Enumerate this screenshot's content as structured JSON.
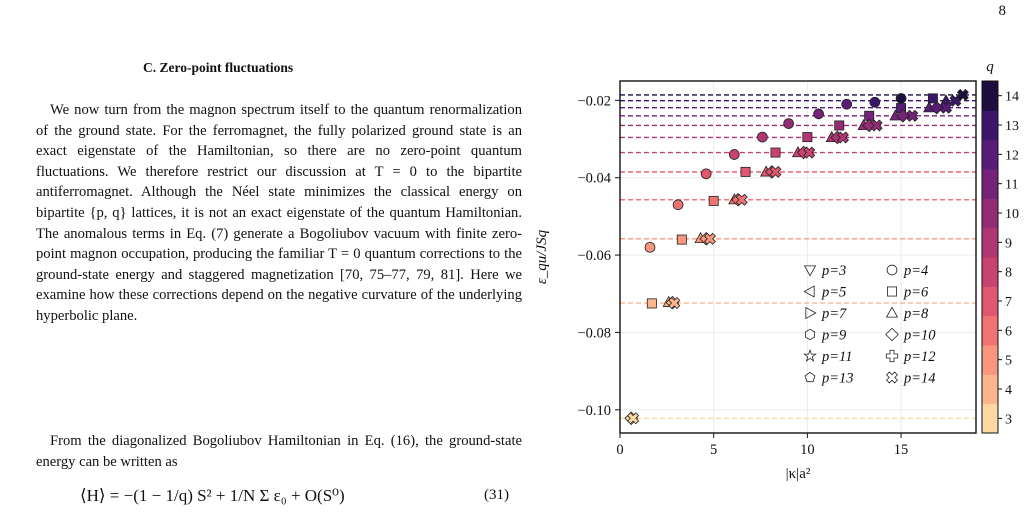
{
  "page": {
    "number": "8"
  },
  "section": {
    "heading": "C.   Zero-point fluctuations"
  },
  "paragraphs": [
    "We now turn from the magnon spectrum itself to the quantum renormalization of the ground state. For the ferromagnet, the fully polarized ground state is an exact eigenstate of the Hamiltonian, so there are no zero-point quantum fluctuations. We therefore restrict our discussion at T = 0 to the bipartite antiferromagnet. Although the Néel state minimizes the classical energy on bipartite {p, q} lattices, it is not an exact eigenstate of the quantum Hamiltonian. The anomalous terms in Eq. (7) generate a Bogoliubov vacuum with finite zero-point magnon occupation, producing the familiar T = 0 quantum corrections to the ground-state energy and staggered magnetization [70, 75–77, 79, 81]. Here we examine how these corrections depend on the negative curvature of the underlying hyperbolic plane.",
    "From the diagonalized Bogoliubov Hamiltonian in Eq. (16), the ground-state energy can be written as"
  ],
  "equation": {
    "text": "⟨H⟩ = −(1 − 1/q) S² + 1/N Σ ε₀ + O(S⁰)",
    "number": "(31)"
  },
  "chart_data": {
    "type": "scatter",
    "xlabel": "|κ|a²",
    "ylabel": "ε_qu/JSq",
    "xlim": [
      0,
      19
    ],
    "ylim": [
      -0.106,
      -0.015
    ],
    "xticks": [
      0,
      5,
      10,
      15
    ],
    "yticks": [
      -0.02,
      -0.04,
      -0.06,
      -0.08,
      -0.1
    ],
    "grid": true,
    "legend_position": "lower-right",
    "colorbar": {
      "title": "q",
      "ticks": [
        3,
        4,
        5,
        6,
        7,
        8,
        9,
        10,
        11,
        12,
        13,
        14
      ]
    },
    "q_colors": {
      "3": "#fcd9a3",
      "4": "#fbb68c",
      "5": "#f8977e",
      "6": "#ef7373",
      "7": "#e0576f",
      "8": "#c94370",
      "9": "#af3773",
      "10": "#932c75",
      "11": "#742378",
      "12": "#581d78",
      "13": "#3b166a",
      "14": "#1c0d3e"
    },
    "reference_lines": [
      {
        "q": 3,
        "y": -0.1022
      },
      {
        "q": 4,
        "y": -0.0724
      },
      {
        "q": 5,
        "y": -0.0558
      },
      {
        "q": 6,
        "y": -0.0457
      },
      {
        "q": 7,
        "y": -0.0385
      },
      {
        "q": 8,
        "y": -0.0335
      },
      {
        "q": 9,
        "y": -0.0296
      },
      {
        "q": 10,
        "y": -0.0265
      },
      {
        "q": 11,
        "y": -0.024
      },
      {
        "q": 12,
        "y": -0.0219
      },
      {
        "q": 13,
        "y": -0.0201
      },
      {
        "q": 14,
        "y": -0.0186
      }
    ],
    "series": [
      {
        "name": "p=3",
        "marker": "triangle-down",
        "points": []
      },
      {
        "name": "p=4",
        "marker": "circle",
        "points": [
          {
            "q": 5,
            "x": 1.6,
            "y": -0.058
          },
          {
            "q": 6,
            "x": 3.1,
            "y": -0.047
          },
          {
            "q": 7,
            "x": 4.6,
            "y": -0.039
          },
          {
            "q": 8,
            "x": 6.1,
            "y": -0.034
          },
          {
            "q": 9,
            "x": 7.6,
            "y": -0.0295
          },
          {
            "q": 10,
            "x": 9.0,
            "y": -0.026
          },
          {
            "q": 11,
            "x": 10.6,
            "y": -0.0235
          },
          {
            "q": 12,
            "x": 12.1,
            "y": -0.021
          },
          {
            "q": 13,
            "x": 13.6,
            "y": -0.0205
          },
          {
            "q": 14,
            "x": 15.0,
            "y": -0.0195
          }
        ]
      },
      {
        "name": "p=5",
        "marker": "triangle-left",
        "points": []
      },
      {
        "name": "p=6",
        "marker": "square",
        "points": [
          {
            "q": 4,
            "x": 1.7,
            "y": -0.0725
          },
          {
            "q": 5,
            "x": 3.3,
            "y": -0.056
          },
          {
            "q": 6,
            "x": 5.0,
            "y": -0.046
          },
          {
            "q": 7,
            "x": 6.7,
            "y": -0.0385
          },
          {
            "q": 8,
            "x": 8.3,
            "y": -0.0335
          },
          {
            "q": 9,
            "x": 10.0,
            "y": -0.0295
          },
          {
            "q": 10,
            "x": 11.7,
            "y": -0.0265
          },
          {
            "q": 11,
            "x": 13.3,
            "y": -0.024
          },
          {
            "q": 12,
            "x": 15.0,
            "y": -0.022
          },
          {
            "q": 13,
            "x": 16.7,
            "y": -0.0195
          }
        ]
      },
      {
        "name": "p=7",
        "marker": "triangle-right",
        "points": []
      },
      {
        "name": "p=8",
        "marker": "triangle-up",
        "points": [
          {
            "q": 4,
            "x": 2.6,
            "y": -0.0722
          },
          {
            "q": 5,
            "x": 4.3,
            "y": -0.0557
          },
          {
            "q": 6,
            "x": 6.1,
            "y": -0.0457
          },
          {
            "q": 7,
            "x": 7.8,
            "y": -0.0385
          },
          {
            "q": 8,
            "x": 9.5,
            "y": -0.0335
          },
          {
            "q": 9,
            "x": 11.3,
            "y": -0.0296
          },
          {
            "q": 10,
            "x": 13.0,
            "y": -0.0265
          },
          {
            "q": 11,
            "x": 14.7,
            "y": -0.024
          },
          {
            "q": 12,
            "x": 16.5,
            "y": -0.0219
          },
          {
            "q": 13,
            "x": 17.4,
            "y": -0.0201
          }
        ]
      },
      {
        "name": "p=9",
        "marker": "hexagon",
        "points": []
      },
      {
        "name": "p=10",
        "marker": "diamond",
        "points": [
          {
            "q": 3,
            "x": 0.6,
            "y": -0.1022
          },
          {
            "q": 4,
            "x": 2.8,
            "y": -0.0723
          },
          {
            "q": 5,
            "x": 4.6,
            "y": -0.0558
          },
          {
            "q": 6,
            "x": 6.3,
            "y": -0.0457
          },
          {
            "q": 7,
            "x": 8.1,
            "y": -0.0385
          },
          {
            "q": 8,
            "x": 9.8,
            "y": -0.0335
          },
          {
            "q": 9,
            "x": 11.6,
            "y": -0.0296
          },
          {
            "q": 10,
            "x": 13.3,
            "y": -0.0265
          },
          {
            "q": 11,
            "x": 15.1,
            "y": -0.024
          },
          {
            "q": 12,
            "x": 16.9,
            "y": -0.0219
          }
        ]
      },
      {
        "name": "p=11",
        "marker": "star",
        "points": []
      },
      {
        "name": "p=12",
        "marker": "plus",
        "points": []
      },
      {
        "name": "p=13",
        "marker": "pentagon",
        "points": []
      },
      {
        "name": "p=14",
        "marker": "x-cross",
        "points": [
          {
            "q": 3,
            "x": 0.7,
            "y": -0.1022
          },
          {
            "q": 4,
            "x": 2.9,
            "y": -0.0724
          },
          {
            "q": 5,
            "x": 4.8,
            "y": -0.0558
          },
          {
            "q": 6,
            "x": 6.5,
            "y": -0.0457
          },
          {
            "q": 7,
            "x": 8.3,
            "y": -0.0385
          },
          {
            "q": 8,
            "x": 10.1,
            "y": -0.0335
          },
          {
            "q": 9,
            "x": 11.9,
            "y": -0.0296
          },
          {
            "q": 10,
            "x": 13.7,
            "y": -0.0265
          },
          {
            "q": 11,
            "x": 15.6,
            "y": -0.024
          },
          {
            "q": 12,
            "x": 17.4,
            "y": -0.0219
          },
          {
            "q": 13,
            "x": 17.9,
            "y": -0.0201
          },
          {
            "q": 14,
            "x": 18.3,
            "y": -0.0186
          }
        ]
      }
    ]
  }
}
